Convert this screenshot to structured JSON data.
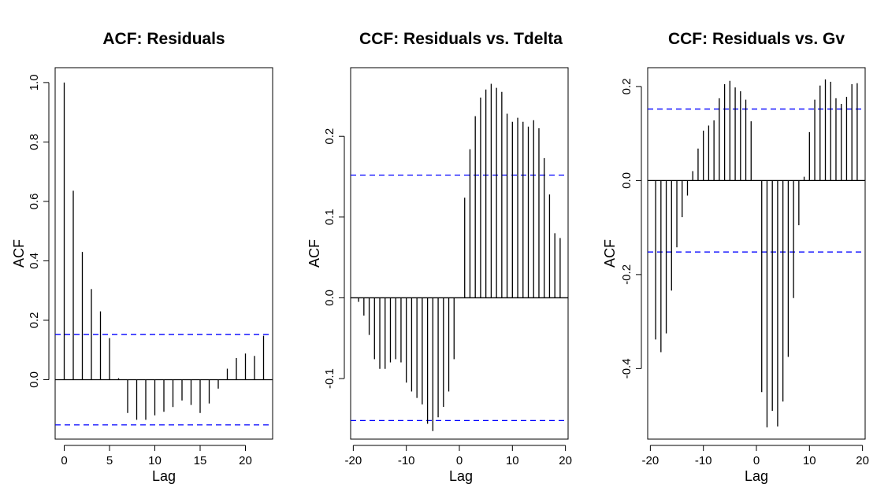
{
  "colors": {
    "bar": "#000000",
    "axis": "#000000",
    "ci_line": "#0000FF",
    "background": "#FFFFFF"
  },
  "chart_data": [
    {
      "type": "bar",
      "title": "ACF: Residuals",
      "xlabel": "Lag",
      "ylabel": "ACF",
      "xlim": [
        -1,
        23
      ],
      "ylim": [
        -0.2,
        1.05
      ],
      "xticks": [
        0,
        5,
        10,
        15,
        20
      ],
      "xtick_labels": [
        "0",
        "5",
        "10",
        "15",
        "20"
      ],
      "yticks": [
        0.0,
        0.2,
        0.4,
        0.6,
        0.8,
        1.0
      ],
      "ytick_labels": [
        "0.0",
        "0.2",
        "0.4",
        "0.6",
        "0.8",
        "1.0"
      ],
      "zero_line": true,
      "ci": [
        0.152,
        -0.152
      ],
      "lags": [
        0,
        1,
        2,
        3,
        4,
        5,
        6,
        7,
        8,
        9,
        10,
        11,
        12,
        13,
        14,
        15,
        16,
        17,
        18,
        19,
        20,
        21,
        22
      ],
      "values": [
        1.0,
        0.636,
        0.43,
        0.305,
        0.23,
        0.14,
        0.005,
        -0.112,
        -0.135,
        -0.135,
        -0.12,
        -0.108,
        -0.092,
        -0.07,
        -0.085,
        -0.112,
        -0.08,
        -0.03,
        0.037,
        0.073,
        0.088,
        0.08,
        0.148
      ]
    },
    {
      "type": "bar",
      "title": "CCF: Residuals vs. Tdelta",
      "xlabel": "Lag",
      "ylabel": "ACF",
      "xlim": [
        -20.5,
        20.5
      ],
      "ylim": [
        -0.175,
        0.285
      ],
      "xticks": [
        -20,
        -10,
        0,
        10,
        20
      ],
      "xtick_labels": [
        "-20",
        "-10",
        "0",
        "10",
        "20"
      ],
      "yticks": [
        -0.1,
        0.0,
        0.1,
        0.2
      ],
      "ytick_labels": [
        "-0.1",
        "0.0",
        "0.1",
        "0.2"
      ],
      "zero_line": true,
      "ci": [
        0.152,
        -0.152
      ],
      "lags": [
        -19,
        -18,
        -17,
        -16,
        -15,
        -14,
        -13,
        -12,
        -11,
        -10,
        -9,
        -8,
        -7,
        -6,
        -5,
        -4,
        -3,
        -2,
        -1,
        0,
        1,
        2,
        3,
        4,
        5,
        6,
        7,
        8,
        9,
        10,
        11,
        12,
        13,
        14,
        15,
        16,
        17,
        18,
        19
      ],
      "values": [
        -0.005,
        -0.022,
        -0.046,
        -0.076,
        -0.088,
        -0.088,
        -0.08,
        -0.076,
        -0.08,
        -0.105,
        -0.116,
        -0.124,
        -0.132,
        -0.156,
        -0.165,
        -0.148,
        -0.135,
        -0.116,
        -0.076,
        0.0,
        0.124,
        0.184,
        0.225,
        0.248,
        0.258,
        0.265,
        0.26,
        0.255,
        0.228,
        0.218,
        0.223,
        0.218,
        0.212,
        0.22,
        0.21,
        0.173,
        0.128,
        0.08,
        0.074
      ]
    },
    {
      "type": "bar",
      "title": "CCF: Residuals vs. Gv",
      "xlabel": "Lag",
      "ylabel": "ACF",
      "xlim": [
        -20.5,
        20.5
      ],
      "ylim": [
        -0.55,
        0.24
      ],
      "xticks": [
        -20,
        -10,
        0,
        10,
        20
      ],
      "xtick_labels": [
        "-20",
        "-10",
        "0",
        "10",
        "20"
      ],
      "yticks": [
        -0.4,
        -0.2,
        0.0,
        0.2
      ],
      "ytick_labels": [
        "-0.4",
        "-0.2",
        "0.0",
        "0.2"
      ],
      "zero_line": true,
      "ci": [
        0.152,
        -0.152
      ],
      "lags": [
        -19,
        -18,
        -17,
        -16,
        -15,
        -14,
        -13,
        -12,
        -11,
        -10,
        -9,
        -8,
        -7,
        -6,
        -5,
        -4,
        -3,
        -2,
        -1,
        0,
        1,
        2,
        3,
        4,
        5,
        6,
        7,
        8,
        9,
        10,
        11,
        12,
        13,
        14,
        15,
        16,
        17,
        18,
        19,
        20
      ],
      "values": [
        -0.338,
        -0.365,
        -0.325,
        -0.234,
        -0.142,
        -0.078,
        -0.032,
        0.02,
        0.068,
        0.106,
        0.117,
        0.128,
        0.175,
        0.205,
        0.212,
        0.198,
        0.19,
        0.172,
        0.126,
        0.0,
        -0.45,
        -0.525,
        -0.49,
        -0.523,
        -0.47,
        -0.375,
        -0.25,
        -0.095,
        0.008,
        0.103,
        0.172,
        0.202,
        0.215,
        0.21,
        0.175,
        0.163,
        0.178,
        0.205,
        0.207,
        0.0
      ]
    }
  ]
}
